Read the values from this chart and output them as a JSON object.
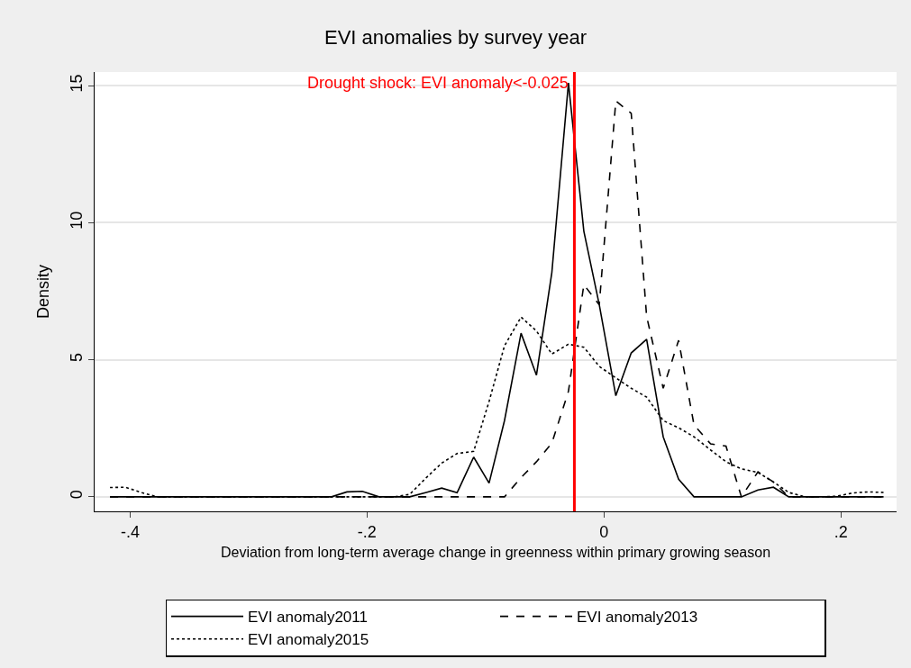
{
  "chart_data": {
    "type": "line",
    "title": "EVI anomalies by survey year",
    "xlabel": "Deviation from long-term average change in greenness within primary growing season",
    "ylabel": "Density",
    "x": [
      -0.417,
      -0.404,
      -0.39,
      -0.377,
      -0.364,
      -0.35,
      -0.337,
      -0.324,
      -0.31,
      -0.297,
      -0.284,
      -0.27,
      -0.257,
      -0.244,
      -0.23,
      -0.217,
      -0.204,
      -0.19,
      -0.177,
      -0.164,
      -0.15,
      -0.137,
      -0.124,
      -0.11,
      -0.097,
      -0.084,
      -0.07,
      -0.057,
      -0.044,
      -0.03,
      -0.017,
      -0.004,
      0.01,
      0.023,
      0.036,
      0.05,
      0.063,
      0.076,
      0.09,
      0.103,
      0.116,
      0.13,
      0.143,
      0.156,
      0.17,
      0.183,
      0.196,
      0.21,
      0.223,
      0.236
    ],
    "series": [
      {
        "name": "EVI anomaly2011",
        "color": "#000000",
        "line_style": "solid",
        "values": [
          0,
          0,
          0,
          0,
          0,
          0,
          0,
          0,
          0,
          0,
          0,
          0,
          0,
          0,
          0,
          0.18,
          0.2,
          0,
          0,
          0,
          0.16,
          0.32,
          0.15,
          1.45,
          0.5,
          2.78,
          5.97,
          4.44,
          8.19,
          15.1,
          9.69,
          7.01,
          3.69,
          5.25,
          5.75,
          2.19,
          0.64,
          0,
          0,
          0,
          0,
          0.25,
          0.35,
          0,
          0,
          0,
          0,
          0,
          0,
          0
        ]
      },
      {
        "name": "EVI anomaly2013",
        "color": "#000000",
        "line_style": "dashed",
        "values": [
          0,
          0,
          0,
          0,
          0,
          0,
          0,
          0,
          0,
          0,
          0,
          0,
          0,
          0,
          0,
          0,
          0,
          0,
          0,
          0,
          0,
          0,
          0,
          0,
          0,
          0,
          0.7,
          1.28,
          1.96,
          3.85,
          7.74,
          7.01,
          14.45,
          13.99,
          6.58,
          3.96,
          5.71,
          2.62,
          1.93,
          1.85,
          0,
          0.91,
          0.54,
          0,
          0,
          0,
          0,
          0,
          0,
          0
        ]
      },
      {
        "name": "EVI anomaly2015",
        "color": "#000000",
        "line_style": "dotted",
        "values": [
          0.34,
          0.35,
          0.15,
          0,
          0,
          0,
          0,
          0,
          0,
          0,
          0,
          0,
          0,
          0,
          0,
          0,
          0,
          0,
          0,
          0.09,
          0.7,
          1.23,
          1.58,
          1.66,
          3.48,
          5.51,
          6.56,
          6.05,
          5.21,
          5.57,
          5.46,
          4.76,
          4.34,
          3.96,
          3.64,
          2.78,
          2.52,
          2.19,
          1.71,
          1.28,
          1.02,
          0.89,
          0.54,
          0.16,
          0,
          0,
          0.02,
          0.14,
          0.18,
          0.16
        ]
      }
    ],
    "xlim": [
      -0.43,
      0.247
    ],
    "xticks": [
      {
        "value": -0.4,
        "label": "-.4"
      },
      {
        "value": -0.2,
        "label": "-.2"
      },
      0,
      {
        "value": 0.2,
        "label": ".2"
      }
    ],
    "ylim": [
      -0.53,
      15.5
    ],
    "yticks": [
      0,
      5,
      10,
      15
    ],
    "ref_lines": [
      {
        "axis": "x",
        "value": -0.025,
        "label": "Drought shock: EVI anomaly<-0.025",
        "color": "#ff0000",
        "line_style": "solid"
      }
    ],
    "grid": "y",
    "legend": "bottom",
    "marker": "none"
  }
}
